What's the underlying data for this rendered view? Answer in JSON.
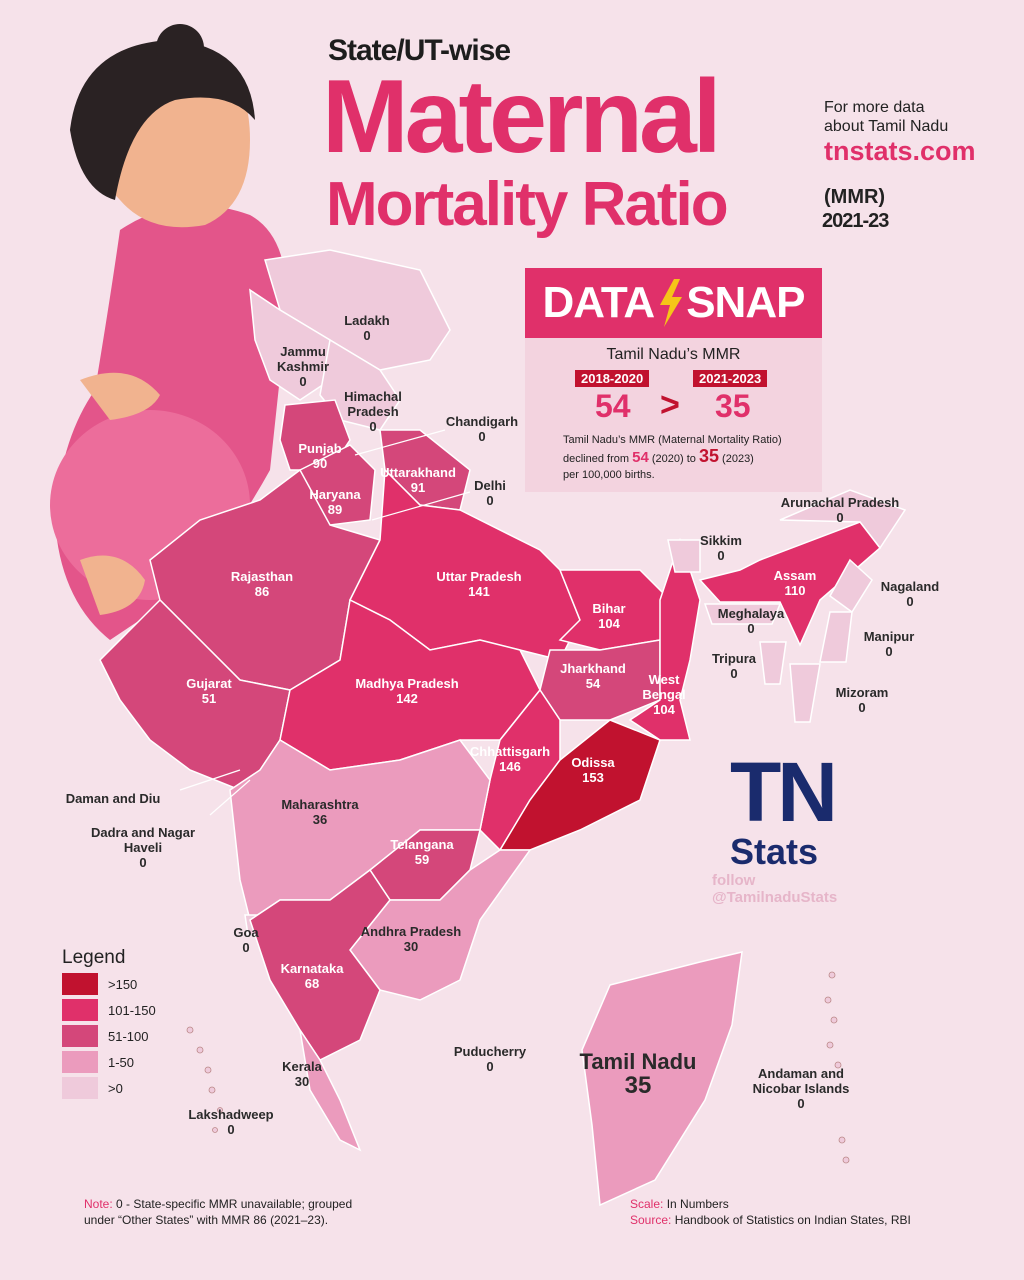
{
  "header": {
    "kicker": "State/UT-wise",
    "title_line1": "Maternal",
    "title_line2": "Mortality Ratio",
    "abbrev": "(MMR)",
    "period": "2021-23",
    "promo_line1": "For more data",
    "promo_line2": "about Tamil Nadu",
    "promo_site": "tnstats.com"
  },
  "data_snap": {
    "brand_left": "DATA",
    "brand_right": "SNAP",
    "heading": "Tamil Nadu’s MMR",
    "before": {
      "period": "2018-2020",
      "value": 54
    },
    "after": {
      "period": "2021-2023",
      "value": 35
    },
    "note_line1": "Tamil Nadu’s MMR (Maternal Mortality Ratio)",
    "note_prefix": "declined from",
    "note_from_value": 54,
    "note_from_year": "(2020) to",
    "note_to_value": 35,
    "note_to_year": "(2023)",
    "note_line3": "per 100,000 births."
  },
  "states": [
    {
      "name": "Ladakh",
      "value": 0,
      "color": "#efcadb"
    },
    {
      "name": "Jammu Kashmir",
      "value": 0,
      "color": "#efcadb"
    },
    {
      "name": "Himachal Pradesh",
      "value": 0,
      "color": "#efcadb"
    },
    {
      "name": "Chandigarh",
      "value": 0
    },
    {
      "name": "Punjab",
      "value": 90,
      "color": "#d4477a"
    },
    {
      "name": "Uttarakhand",
      "value": 91,
      "color": "#d4477a"
    },
    {
      "name": "Haryana",
      "value": 89,
      "color": "#d4477a"
    },
    {
      "name": "Delhi",
      "value": 0
    },
    {
      "name": "Rajasthan",
      "value": 86,
      "color": "#d4477a"
    },
    {
      "name": "Uttar Pradesh",
      "value": 141,
      "color": "#e0306a"
    },
    {
      "name": "Bihar",
      "value": 104,
      "color": "#e0306a"
    },
    {
      "name": "Gujarat",
      "value": 51,
      "color": "#d4477a"
    },
    {
      "name": "Madhya Pradesh",
      "value": 142,
      "color": "#e0306a"
    },
    {
      "name": "Jharkhand",
      "value": 54,
      "color": "#d4477a"
    },
    {
      "name": "West Bengal",
      "value": 104,
      "color": "#e0306a"
    },
    {
      "name": "Chhattisgarh",
      "value": 146,
      "color": "#e0306a"
    },
    {
      "name": "Odissa",
      "value": 153,
      "color": "#c1122f"
    },
    {
      "name": "Daman and Diu",
      "value": null
    },
    {
      "name": "Dadra and Nagar Haveli",
      "value": 0
    },
    {
      "name": "Maharashtra",
      "value": 36,
      "color": "#eb9bbd"
    },
    {
      "name": "Telangana",
      "value": 59,
      "color": "#d4477a"
    },
    {
      "name": "Goa",
      "value": 0,
      "color": "#efcadb"
    },
    {
      "name": "Andhra Pradesh",
      "value": 30,
      "color": "#eb9bbd"
    },
    {
      "name": "Karnataka",
      "value": 68,
      "color": "#d4477a"
    },
    {
      "name": "Kerala",
      "value": 30,
      "color": "#eb9bbd"
    },
    {
      "name": "Puducherry",
      "value": 0
    },
    {
      "name": "Lakshadweep",
      "value": 0
    },
    {
      "name": "Tamil Nadu",
      "value": 35,
      "color": "#eb9bbd"
    },
    {
      "name": "Andaman and Nicobar Islands",
      "value": 0
    },
    {
      "name": "Arunachal Pradesh",
      "value": 0,
      "color": "#efcadb"
    },
    {
      "name": "Sikkim",
      "value": 0,
      "color": "#efcadb"
    },
    {
      "name": "Assam",
      "value": 110,
      "color": "#e0306a"
    },
    {
      "name": "Nagaland",
      "value": 0,
      "color": "#efcadb"
    },
    {
      "name": "Meghalaya",
      "value": 0,
      "color": "#efcadb"
    },
    {
      "name": "Manipur",
      "value": 0,
      "color": "#efcadb"
    },
    {
      "name": "Tripura",
      "value": 0,
      "color": "#efcadb"
    },
    {
      "name": "Mizoram",
      "value": 0,
      "color": "#efcadb"
    }
  ],
  "legend": {
    "title": "Legend",
    "items": [
      {
        "label": ">150",
        "color": "#c1122f"
      },
      {
        "label": "101-150",
        "color": "#e0306a"
      },
      {
        "label": "51-100",
        "color": "#d4477a"
      },
      {
        "label": "1-50",
        "color": "#eb9bbd"
      },
      {
        "label": ">0",
        "color": "#efcadb"
      }
    ]
  },
  "branding": {
    "logo_top": "TN",
    "logo_bottom": "Stats",
    "follow": "follow",
    "handle": "@TamilnaduStats"
  },
  "footer": {
    "note_label": "Note:",
    "note_text": "0 - State-specific MMR unavailable; grouped under “Other States” with MMR 86 (2021–23).",
    "scale_label": "Scale:",
    "scale_text": "In Numbers",
    "source_label": "Source:",
    "source_text": "Handbook of Statistics on Indian States, RBI"
  }
}
